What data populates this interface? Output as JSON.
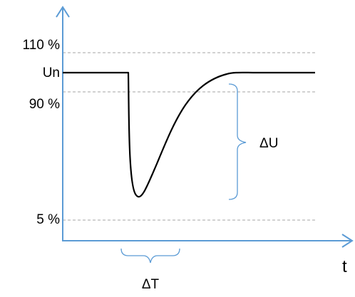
{
  "levels": {
    "upper": "110 %",
    "nominal": "Un",
    "lower": "90 %",
    "bottom": "5 %"
  },
  "annotations": {
    "voltage_drop": "ΔU",
    "duration": "ΔT",
    "time_axis": "t"
  },
  "colors": {
    "axis": "#5b9bd5",
    "curve": "#000000",
    "gridline": "#a6a6a6",
    "brace": "#5b9bd5"
  }
}
